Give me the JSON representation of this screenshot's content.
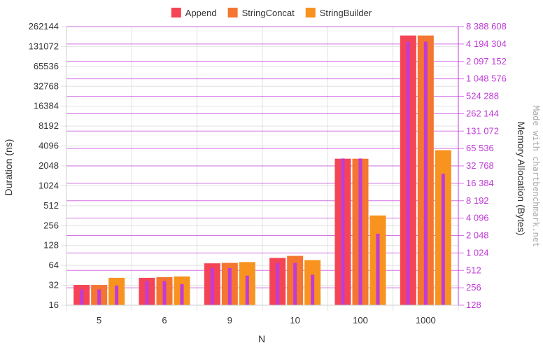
{
  "chart_data": {
    "type": "bar",
    "categories": [
      "5",
      "6",
      "9",
      "10",
      "100",
      "1000"
    ],
    "xlabel": "N",
    "ylabel": "Duration (ns)",
    "y2label": "Memory Allocation (Bytes)",
    "y_scale": "log2",
    "ylim": [
      16,
      262144
    ],
    "y2lim": [
      128,
      8388608
    ],
    "y_ticks": [
      16,
      32,
      64,
      128,
      256,
      512,
      1024,
      2048,
      4096,
      8192,
      16384,
      32768,
      65536,
      131072,
      262144
    ],
    "y_tick_labels": [
      "16",
      "32",
      "64",
      "128",
      "256",
      "512",
      "1024",
      "2048",
      "4096",
      "8192",
      "16384",
      "32768",
      "65536",
      "131072",
      "262144"
    ],
    "y2_ticks": [
      128,
      256,
      512,
      1024,
      2048,
      4096,
      8192,
      16384,
      32768,
      65536,
      131072,
      262144,
      524288,
      1048576,
      2097152,
      4194304,
      8388608
    ],
    "y2_tick_labels": [
      "128",
      "256",
      "512",
      "1 024",
      "2 048",
      "4 096",
      "8 192",
      "16 384",
      "32 768",
      "65 536",
      "131 072",
      "262 144",
      "524 288",
      "1 048 576",
      "2 097 152",
      "4 194 304",
      "8 388 608"
    ],
    "legend_position": "top-center",
    "grid": true,
    "series": [
      {
        "name": "Append",
        "color": "#f44455",
        "duration": [
          32,
          41,
          68,
          82,
          2600,
          190000
        ],
        "memory": [
          240,
          336,
          560,
          688,
          44000,
          4600000
        ]
      },
      {
        "name": "StringConcat",
        "color": "#f47630",
        "duration": [
          32,
          42,
          69,
          88,
          2600,
          190000
        ],
        "memory": [
          240,
          336,
          560,
          688,
          44000,
          4600000
        ]
      },
      {
        "name": "StringBuilder",
        "color": "#f7931e",
        "duration": [
          41,
          43,
          71,
          76,
          360,
          3500
        ],
        "memory": [
          280,
          296,
          416,
          432,
          2200,
          24000
        ]
      }
    ],
    "memory_bar_color": "#c03bd8",
    "watermark": "Made with chartbenchmark.net"
  }
}
